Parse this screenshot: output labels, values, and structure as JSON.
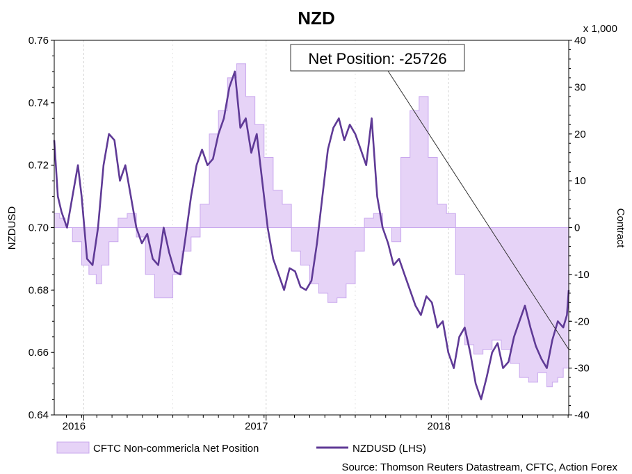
{
  "chart_data": {
    "type": "line",
    "title": "NZD",
    "left_axis": {
      "label": "NZDUSD",
      "range": [
        0.64,
        0.76
      ],
      "ticks": [
        "0.64",
        "0.66",
        "0.68",
        "0.70",
        "0.72",
        "0.74",
        "0.76"
      ]
    },
    "right_axis": {
      "label": "Contract",
      "multiplier": "x 1,000",
      "range": [
        -40,
        40
      ],
      "ticks": [
        "-40",
        "-30",
        "-20",
        "-10",
        "0",
        "10",
        "20",
        "30",
        "40"
      ]
    },
    "x_axis": {
      "labels": [
        "2016",
        "2017",
        "2018"
      ],
      "range": [
        2015.85,
        2018.67
      ]
    },
    "annotation": "Net Position: -25726",
    "legend": {
      "net_label": "CFTC Non-commericla Net Position",
      "price_label": "NZDUSD (LHS)"
    },
    "source": "Source: Thomson Reuters Datastream, CFTC, Action Forex",
    "colors": {
      "line": "#5f3a96",
      "fill": "#e6d3f7",
      "fill_edge": "#c9a8ee"
    },
    "series": [
      {
        "name": "CFTC Non-commericla Net Position",
        "axis": "right",
        "kind": "area",
        "x": [
          2015.85,
          2015.88,
          2015.91,
          2015.95,
          2016.0,
          2016.04,
          2016.08,
          2016.11,
          2016.15,
          2016.2,
          2016.25,
          2016.3,
          2016.35,
          2016.4,
          2016.45,
          2016.5,
          2016.55,
          2016.6,
          2016.65,
          2016.7,
          2016.75,
          2016.8,
          2016.85,
          2016.9,
          2016.95,
          2017.0,
          2017.05,
          2017.1,
          2017.15,
          2017.2,
          2017.25,
          2017.3,
          2017.35,
          2017.4,
          2017.45,
          2017.5,
          2017.55,
          2017.6,
          2017.65,
          2017.7,
          2017.75,
          2017.8,
          2017.85,
          2017.9,
          2017.95,
          2018.0,
          2018.05,
          2018.1,
          2018.15,
          2018.2,
          2018.25,
          2018.3,
          2018.35,
          2018.4,
          2018.45,
          2018.5,
          2018.55,
          2018.58,
          2018.61,
          2018.64,
          2018.67
        ],
        "values": [
          3,
          2,
          0,
          -3,
          -8,
          -10,
          -12,
          -8,
          -3,
          2,
          3,
          -2,
          -10,
          -15,
          -15,
          -10,
          -5,
          -2,
          5,
          20,
          25,
          32,
          35,
          28,
          22,
          15,
          8,
          5,
          -5,
          -8,
          -12,
          -14,
          -16,
          -15,
          -12,
          -5,
          2,
          3,
          0,
          -3,
          15,
          25,
          28,
          15,
          5,
          3,
          -10,
          -25,
          -27,
          -26,
          -24,
          -26,
          -29,
          -32,
          -33,
          -31,
          -34,
          -33,
          -32,
          -30,
          -26
        ]
      },
      {
        "name": "NZDUSD (LHS)",
        "axis": "left",
        "kind": "line",
        "x": [
          2015.85,
          2015.87,
          2015.89,
          2015.92,
          2015.95,
          2015.98,
          2016.0,
          2016.03,
          2016.06,
          2016.09,
          2016.12,
          2016.15,
          2016.18,
          2016.21,
          2016.24,
          2016.27,
          2016.3,
          2016.33,
          2016.36,
          2016.39,
          2016.42,
          2016.45,
          2016.48,
          2016.51,
          2016.54,
          2016.57,
          2016.6,
          2016.63,
          2016.66,
          2016.69,
          2016.72,
          2016.75,
          2016.78,
          2016.81,
          2016.84,
          2016.87,
          2016.9,
          2016.93,
          2016.96,
          2016.99,
          2017.02,
          2017.05,
          2017.08,
          2017.11,
          2017.14,
          2017.17,
          2017.2,
          2017.23,
          2017.26,
          2017.29,
          2017.32,
          2017.35,
          2017.38,
          2017.41,
          2017.44,
          2017.47,
          2017.5,
          2017.53,
          2017.56,
          2017.59,
          2017.62,
          2017.65,
          2017.68,
          2017.71,
          2017.74,
          2017.77,
          2017.8,
          2017.83,
          2017.86,
          2017.89,
          2017.92,
          2017.95,
          2017.98,
          2018.01,
          2018.04,
          2018.07,
          2018.1,
          2018.13,
          2018.16,
          2018.19,
          2018.22,
          2018.25,
          2018.28,
          2018.31,
          2018.34,
          2018.37,
          2018.4,
          2018.43,
          2018.46,
          2018.49,
          2018.52,
          2018.55,
          2018.58,
          2018.61,
          2018.64,
          2018.66,
          2018.67
        ],
        "values": [
          0.728,
          0.71,
          0.705,
          0.7,
          0.71,
          0.72,
          0.71,
          0.69,
          0.688,
          0.7,
          0.72,
          0.73,
          0.728,
          0.715,
          0.72,
          0.71,
          0.7,
          0.695,
          0.698,
          0.69,
          0.688,
          0.7,
          0.692,
          0.686,
          0.685,
          0.697,
          0.71,
          0.72,
          0.725,
          0.72,
          0.722,
          0.73,
          0.735,
          0.745,
          0.75,
          0.732,
          0.735,
          0.724,
          0.73,
          0.715,
          0.7,
          0.69,
          0.685,
          0.68,
          0.687,
          0.686,
          0.681,
          0.68,
          0.683,
          0.695,
          0.71,
          0.725,
          0.732,
          0.735,
          0.728,
          0.733,
          0.73,
          0.725,
          0.72,
          0.735,
          0.71,
          0.7,
          0.695,
          0.688,
          0.69,
          0.685,
          0.68,
          0.675,
          0.672,
          0.678,
          0.676,
          0.668,
          0.67,
          0.66,
          0.655,
          0.665,
          0.668,
          0.66,
          0.65,
          0.645,
          0.652,
          0.66,
          0.663,
          0.655,
          0.657,
          0.665,
          0.67,
          0.675,
          0.668,
          0.662,
          0.658,
          0.655,
          0.664,
          0.67,
          0.668,
          0.672,
          0.68
        ]
      }
    ]
  }
}
